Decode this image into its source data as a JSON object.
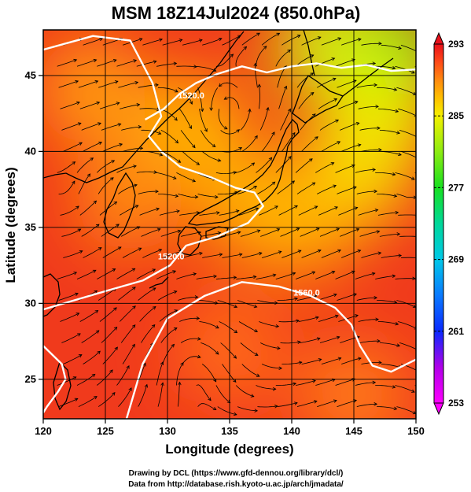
{
  "title": "MSM 18Z14Jul2024 (850.0hPa)",
  "map": {
    "xlabel": "Longitude (degrees)",
    "ylabel": "Latitude  (degrees)",
    "lon_range": [
      120,
      150
    ],
    "lat_range": [
      22.4,
      48
    ],
    "lon_ticks": [
      120,
      125,
      130,
      135,
      140,
      145,
      150
    ],
    "lat_ticks": [
      25,
      30,
      35,
      40,
      45
    ],
    "background_color": "#f03a1c",
    "grid_color": "#000000",
    "field_blobs": [
      {
        "lon": 148,
        "lat": 46.5,
        "value": 280.5
      },
      {
        "lon": 143,
        "lat": 47,
        "value": 283.5
      },
      {
        "lon": 147,
        "lat": 42,
        "value": 284.5
      },
      {
        "lon": 145,
        "lat": 38.5,
        "value": 285.5
      },
      {
        "lon": 132,
        "lat": 41.5,
        "value": 287.5
      },
      {
        "lon": 124,
        "lat": 44,
        "value": 288.5
      },
      {
        "lon": 141,
        "lat": 35.5,
        "value": 287.5
      },
      {
        "lon": 137,
        "lat": 36.5,
        "value": 287.5
      },
      {
        "lon": 127,
        "lat": 37,
        "value": 289
      },
      {
        "lon": 135,
        "lat": 27,
        "value": 290
      },
      {
        "lon": 145,
        "lat": 24,
        "value": 289.5
      }
    ]
  },
  "contours": [
    {
      "level_label": "1520.0",
      "points": [
        [
          120,
          46.7
        ],
        [
          124,
          47.6
        ],
        [
          127,
          47.3
        ],
        [
          128.8,
          44.5
        ],
        [
          129.5,
          42.3
        ],
        [
          128.5,
          41
        ],
        [
          129.5,
          40
        ],
        [
          131,
          39
        ],
        [
          133.5,
          38.3
        ],
        [
          135.5,
          37.6
        ],
        [
          137,
          37.3
        ],
        [
          137.7,
          36.4
        ],
        [
          136.5,
          35.3
        ],
        [
          134,
          34.4
        ],
        [
          131.5,
          33.8
        ],
        [
          130.2,
          32.5
        ],
        [
          128,
          31.5
        ],
        [
          125,
          30.8
        ],
        [
          122.5,
          30.2
        ],
        [
          120,
          29.6
        ]
      ],
      "label_at": [
        130.3,
        32.9
      ]
    },
    {
      "level_label": "1520.0",
      "points": [
        [
          128.2,
          42.1
        ],
        [
          129.7,
          42.8
        ],
        [
          131,
          43.8
        ],
        [
          132.3,
          44.5
        ],
        [
          134,
          45.1
        ],
        [
          136,
          45.6
        ],
        [
          138,
          45.2
        ],
        [
          140,
          45.6
        ],
        [
          142,
          45.8
        ],
        [
          144,
          45.5
        ],
        [
          146,
          45.7
        ],
        [
          148,
          45.3
        ],
        [
          150,
          45.4
        ]
      ],
      "label_at": [
        131.9,
        43.5
      ]
    },
    {
      "level_label": "1560.0",
      "points": [
        [
          126.7,
          22.4
        ],
        [
          128,
          26
        ],
        [
          130,
          29
        ],
        [
          133,
          30.5
        ],
        [
          136,
          31.4
        ],
        [
          139,
          31.1
        ],
        [
          141.5,
          30.5
        ],
        [
          143.5,
          29.7
        ],
        [
          144.8,
          28.6
        ],
        [
          145.5,
          27.2
        ],
        [
          146.5,
          25.9
        ],
        [
          148,
          25.5
        ],
        [
          150,
          26.3
        ]
      ],
      "label_at": [
        141.2,
        30.5
      ]
    },
    {
      "level_label": "",
      "points": [
        [
          120,
          27.2
        ],
        [
          121.5,
          26
        ],
        [
          121.8,
          25
        ],
        [
          121.2,
          24.2
        ],
        [
          120.3,
          23.2
        ],
        [
          120,
          22.8
        ]
      ],
      "label_at": null
    }
  ],
  "colorbar": {
    "min": 253,
    "max": 293,
    "tick_labels": [
      "293",
      "285",
      "277",
      "269",
      "261",
      "253"
    ],
    "tick_values": [
      293,
      285,
      277,
      269,
      261,
      253
    ],
    "color_stops": [
      {
        "value": 253,
        "color": "#ff00ff"
      },
      {
        "value": 257,
        "color": "#b000e8"
      },
      {
        "value": 261,
        "color": "#0a2aff"
      },
      {
        "value": 265,
        "color": "#0a7aff"
      },
      {
        "value": 269,
        "color": "#00c8e8"
      },
      {
        "value": 273,
        "color": "#00d89a"
      },
      {
        "value": 277,
        "color": "#18e020"
      },
      {
        "value": 281,
        "color": "#8cec12"
      },
      {
        "value": 285,
        "color": "#f5f000"
      },
      {
        "value": 287,
        "color": "#ffc000"
      },
      {
        "value": 289,
        "color": "#ff8a10"
      },
      {
        "value": 291,
        "color": "#ff4a18"
      },
      {
        "value": 293,
        "color": "#e8101a"
      }
    ]
  },
  "credits": [
    "Drawing by DCL (https://www.gfd-dennou.org/library/dcl/)",
    "Data from http://database.rish.kyoto-u.ac.jp/arch/jmadata/"
  ]
}
